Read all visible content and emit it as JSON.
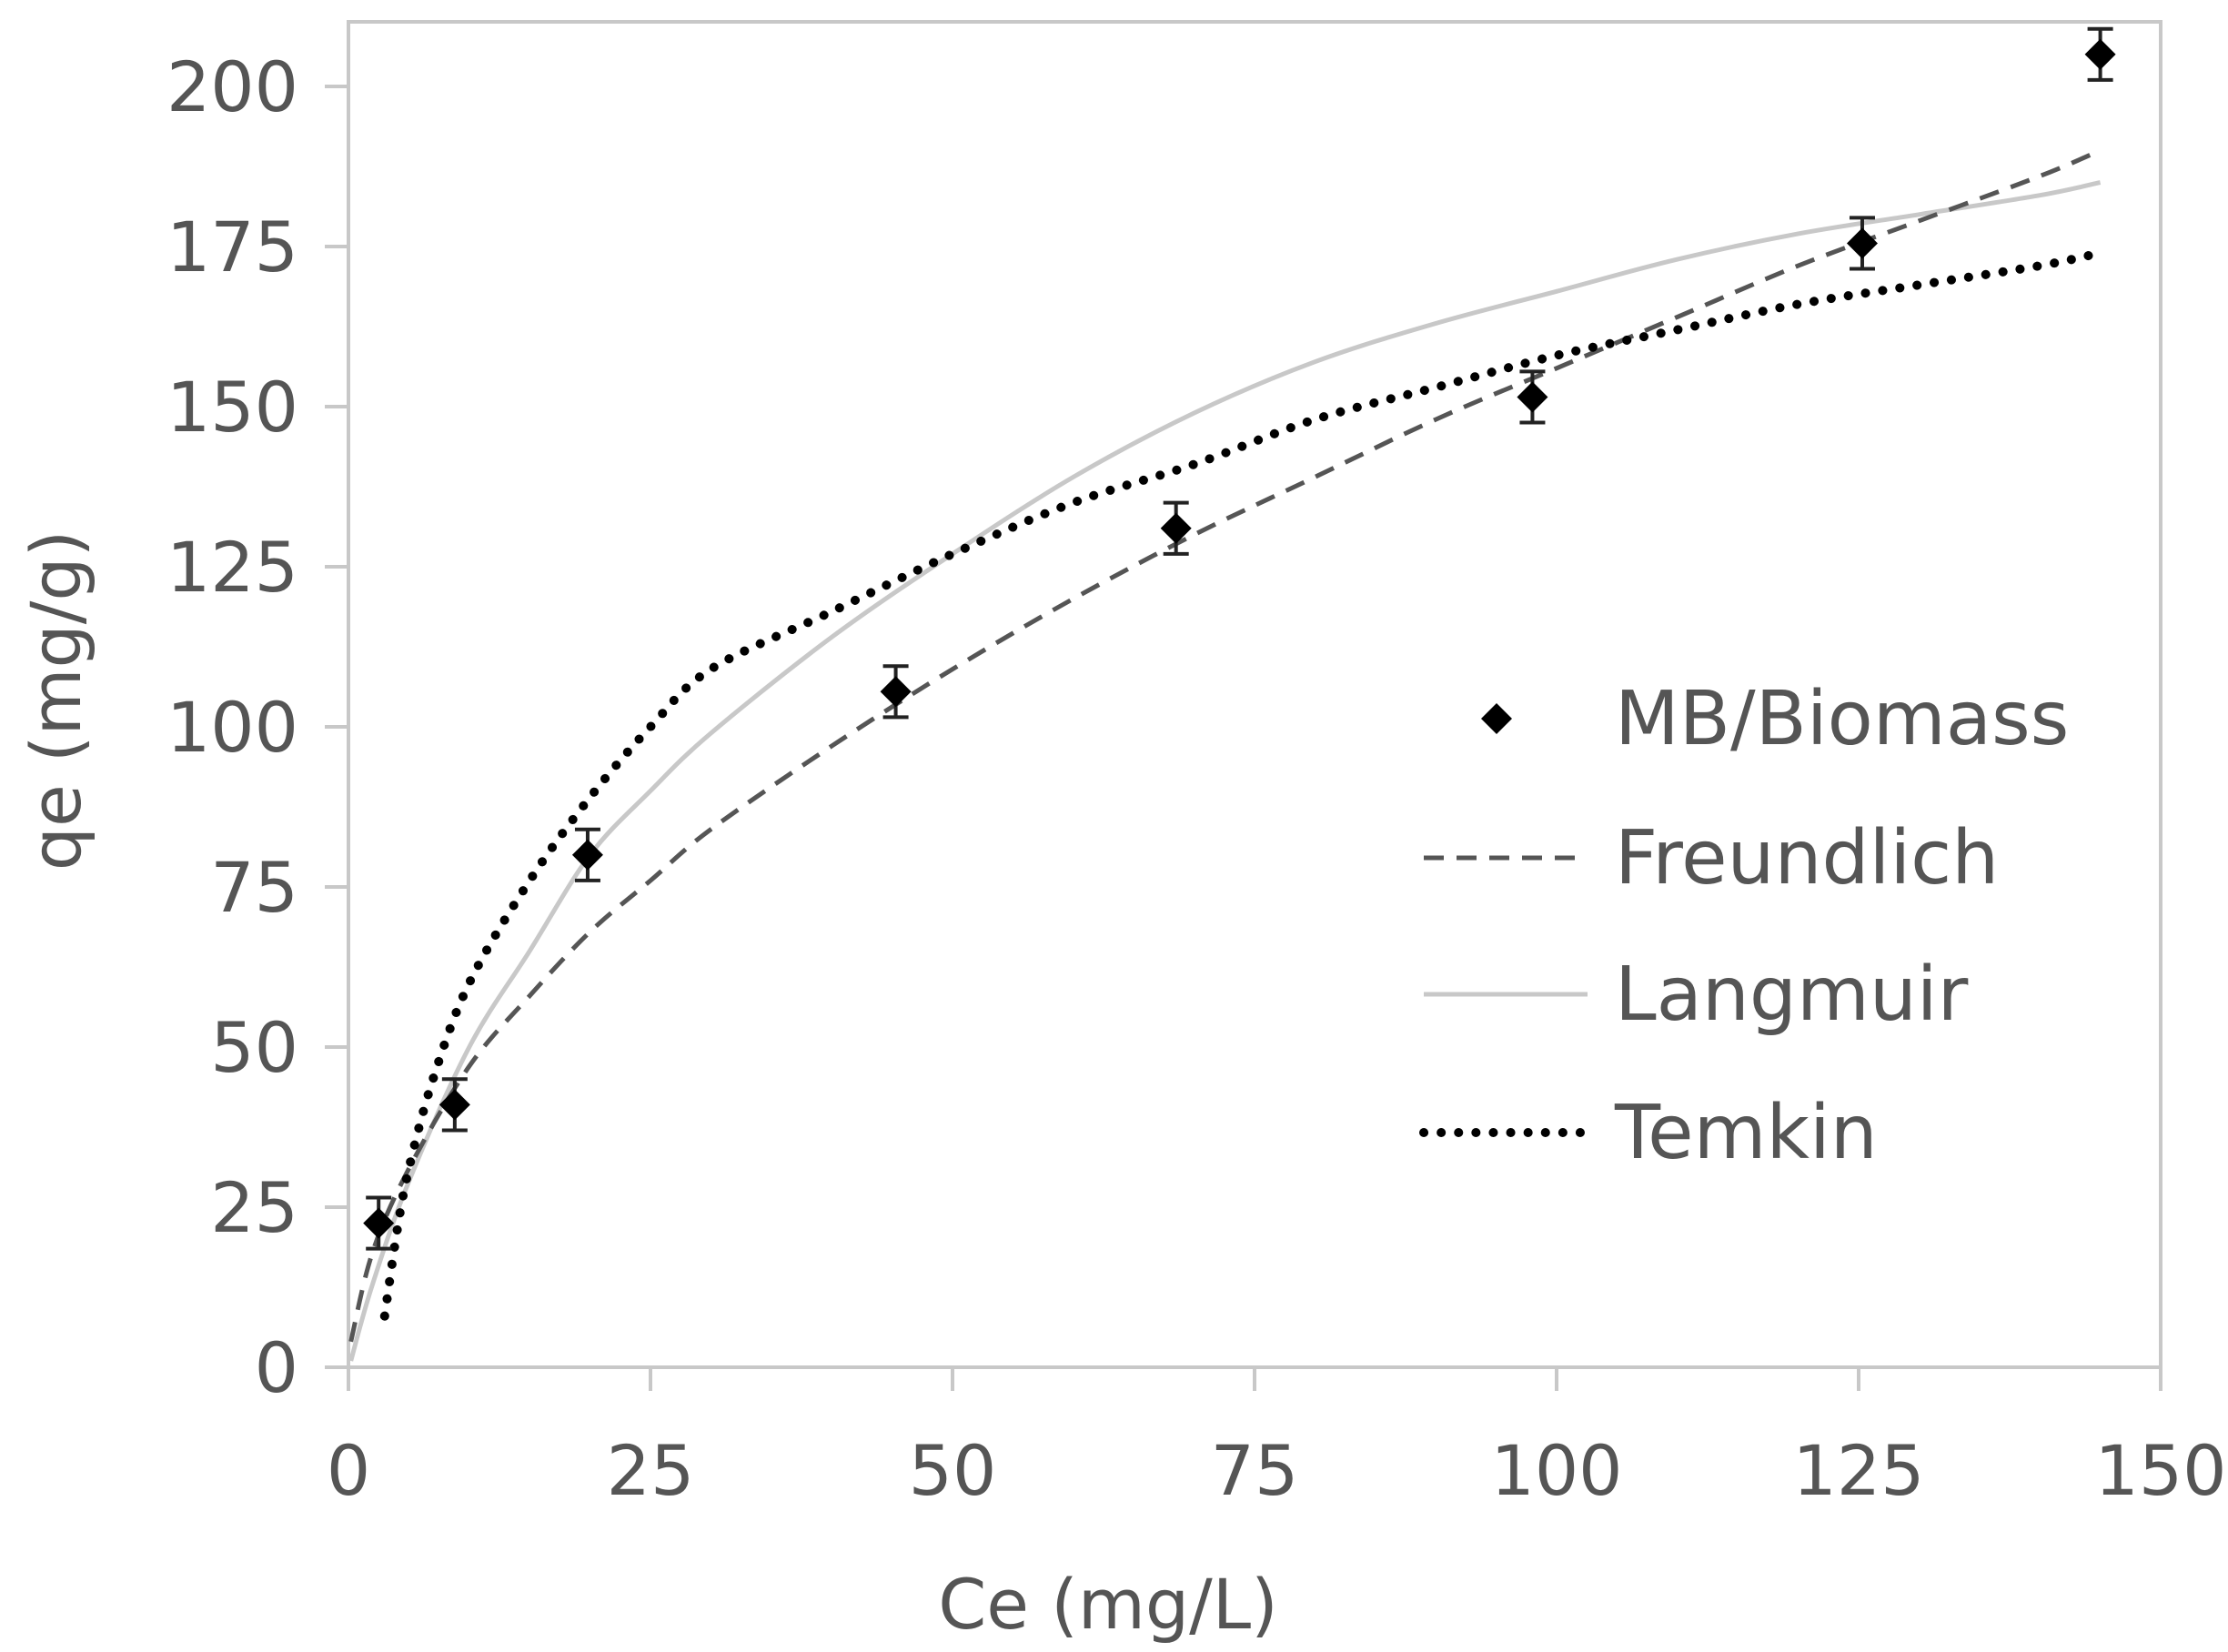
{
  "chart_data": {
    "type": "scatter",
    "title": "",
    "xlabel": "Ce (mg/L)",
    "ylabel": "qe (mg/g)",
    "xlim": [
      0,
      150
    ],
    "ylim": [
      0,
      200
    ],
    "xticks": [
      0,
      25,
      50,
      75,
      100,
      125,
      150
    ],
    "yticks": [
      0,
      25,
      50,
      75,
      100,
      125,
      150,
      175,
      200
    ],
    "grid": false,
    "legend_position": "right-center",
    "series": [
      {
        "name": "MB/Biomass",
        "kind": "points",
        "marker": "diamond",
        "color": "#000000",
        "x": [
          2.5,
          8.8,
          19.8,
          45.3,
          68.5,
          98.0,
          125.3,
          145.0
        ],
        "y": [
          22.5,
          41.0,
          80.0,
          105.5,
          131.0,
          151.5,
          175.5,
          205.0
        ],
        "error": [
          2,
          2,
          2,
          2,
          2,
          2,
          2,
          2
        ]
      },
      {
        "name": "Freundlich",
        "kind": "line",
        "style": "dashed",
        "color": "#555555",
        "x": [
          0.2,
          2,
          5,
          10,
          15,
          20,
          25,
          30,
          40,
          50,
          60,
          70,
          80,
          90,
          100,
          110,
          120,
          130,
          140,
          145
        ],
        "y": [
          4,
          18,
          31,
          47,
          58,
          68,
          76,
          84,
          97,
          109,
          120,
          130,
          139,
          148,
          156,
          164,
          172,
          179,
          186,
          190
        ]
      },
      {
        "name": "Langmuir",
        "kind": "line",
        "style": "solid",
        "color": "#c8c8c8",
        "x": [
          0.2,
          2,
          5,
          10,
          15,
          20,
          25,
          30,
          40,
          50,
          60,
          70,
          80,
          90,
          100,
          110,
          120,
          130,
          140,
          145
        ],
        "y": [
          1,
          13,
          29,
          50,
          65,
          80,
          90,
          99,
          114,
          127,
          139,
          149,
          157,
          163,
          168,
          173,
          177,
          180,
          183,
          185
        ]
      },
      {
        "name": "Temkin",
        "kind": "line",
        "style": "dotted",
        "color": "#000000",
        "x": [
          3,
          4,
          5,
          7,
          10,
          15,
          20,
          25,
          30,
          40,
          50,
          60,
          70,
          80,
          90,
          100,
          110,
          120,
          130,
          140,
          145
        ],
        "y": [
          8,
          21,
          31,
          45,
          60,
          76,
          89,
          100,
          109,
          118,
          127,
          135,
          141,
          148,
          153,
          158,
          162,
          166,
          169,
          172,
          174
        ]
      }
    ]
  }
}
